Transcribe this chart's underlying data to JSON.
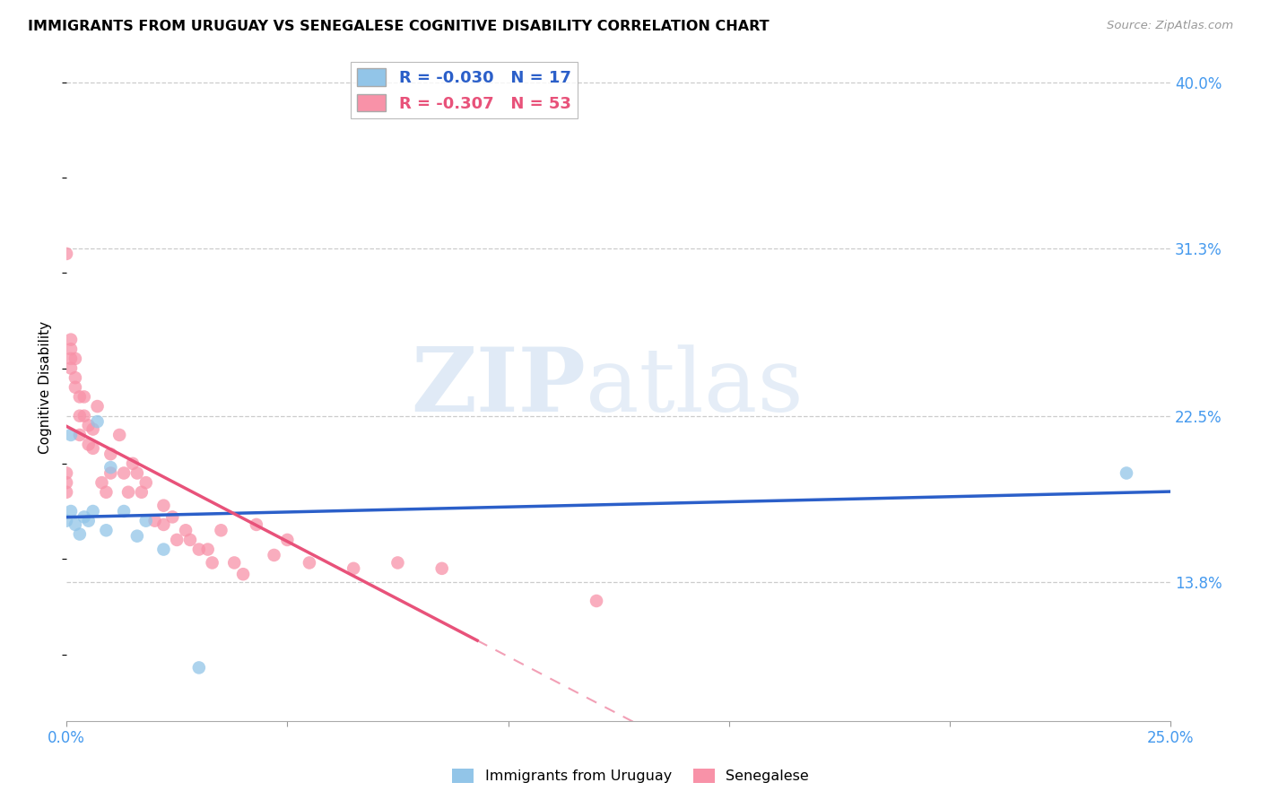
{
  "title": "IMMIGRANTS FROM URUGUAY VS SENEGALESE COGNITIVE DISABILITY CORRELATION CHART",
  "source": "Source: ZipAtlas.com",
  "ylabel": "Cognitive Disability",
  "xlim": [
    0.0,
    0.25
  ],
  "ylim": [
    0.065,
    0.415
  ],
  "yticks": [
    0.138,
    0.225,
    0.313,
    0.4
  ],
  "ytick_labels": [
    "13.8%",
    "22.5%",
    "31.3%",
    "40.0%"
  ],
  "xticks": [
    0.0,
    0.05,
    0.1,
    0.15,
    0.2,
    0.25
  ],
  "xtick_labels": [
    "0.0%",
    "",
    "",
    "",
    "",
    "25.0%"
  ],
  "legend_r_uruguay": "-0.030",
  "legend_n_uruguay": "17",
  "legend_r_senegal": "-0.307",
  "legend_n_senegal": "53",
  "color_uruguay": "#92C5E8",
  "color_senegal": "#F892A8",
  "trendline_color_uruguay": "#2B5FC9",
  "trendline_color_senegal": "#E8527A",
  "watermark_zip": "ZIP",
  "watermark_atlas": "atlas",
  "uruguay_x": [
    0.0,
    0.001,
    0.001,
    0.002,
    0.003,
    0.004,
    0.005,
    0.006,
    0.007,
    0.009,
    0.01,
    0.013,
    0.016,
    0.018,
    0.022,
    0.03,
    0.24
  ],
  "uruguay_y": [
    0.17,
    0.175,
    0.215,
    0.168,
    0.163,
    0.172,
    0.17,
    0.175,
    0.222,
    0.165,
    0.198,
    0.175,
    0.162,
    0.17,
    0.155,
    0.093,
    0.195
  ],
  "senegal_x": [
    0.0,
    0.0,
    0.0,
    0.0,
    0.001,
    0.001,
    0.001,
    0.001,
    0.002,
    0.002,
    0.002,
    0.003,
    0.003,
    0.003,
    0.004,
    0.004,
    0.005,
    0.005,
    0.006,
    0.006,
    0.007,
    0.008,
    0.009,
    0.01,
    0.01,
    0.012,
    0.013,
    0.014,
    0.015,
    0.016,
    0.017,
    0.018,
    0.02,
    0.022,
    0.022,
    0.024,
    0.025,
    0.027,
    0.028,
    0.03,
    0.032,
    0.033,
    0.035,
    0.038,
    0.04,
    0.043,
    0.047,
    0.05,
    0.055,
    0.065,
    0.075,
    0.085,
    0.12
  ],
  "senegal_y": [
    0.31,
    0.195,
    0.19,
    0.185,
    0.265,
    0.26,
    0.255,
    0.25,
    0.255,
    0.245,
    0.24,
    0.235,
    0.225,
    0.215,
    0.235,
    0.225,
    0.22,
    0.21,
    0.218,
    0.208,
    0.23,
    0.19,
    0.185,
    0.205,
    0.195,
    0.215,
    0.195,
    0.185,
    0.2,
    0.195,
    0.185,
    0.19,
    0.17,
    0.178,
    0.168,
    0.172,
    0.16,
    0.165,
    0.16,
    0.155,
    0.155,
    0.148,
    0.165,
    0.148,
    0.142,
    0.168,
    0.152,
    0.16,
    0.148,
    0.145,
    0.148,
    0.145,
    0.128
  ],
  "senegal_trendline_solid_end_x": 0.093,
  "senegal_trendline_dashed_start_x": 0.093
}
